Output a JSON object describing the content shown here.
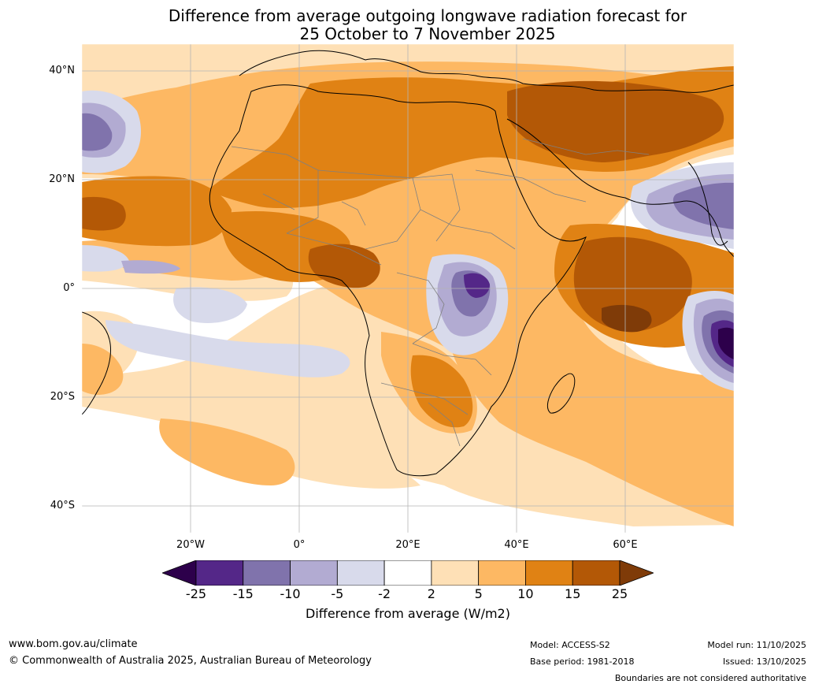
{
  "title": {
    "line1": "Difference from average outgoing longwave radiation forecast for",
    "line2": "25 October to 7 November 2025"
  },
  "map": {
    "lat_labels": [
      "40°N",
      "20°N",
      "0°",
      "20°S",
      "40°S"
    ],
    "lon_labels": [
      "20°W",
      "0°",
      "20°E",
      "40°E",
      "60°E"
    ],
    "lon_range": [
      -40,
      80
    ],
    "lat_range": [
      -45,
      45
    ]
  },
  "colorbar": {
    "ticks": [
      "-25",
      "-15",
      "-10",
      "-5",
      "-2",
      "2",
      "5",
      "10",
      "15",
      "25"
    ],
    "colors": [
      "#2d004b",
      "#542788",
      "#8073ac",
      "#b2abd2",
      "#d8daeb",
      "#ffffff",
      "#fee0b6",
      "#fdb863",
      "#e08214",
      "#b35806",
      "#7f3b08"
    ],
    "label": "Difference from average (W/m2)"
  },
  "footer": {
    "website": "www.bom.gov.au/climate",
    "copyright": "© Commonwealth of Australia 2025, Australian Bureau of Meteorology",
    "model": "Model: ACCESS-S2",
    "base_period": "Base period: 1981-2018",
    "model_run": "Model run: 11/10/2025",
    "issued": "Issued: 13/10/2025",
    "disclaimer": "Boundaries are not considered authoritative"
  }
}
